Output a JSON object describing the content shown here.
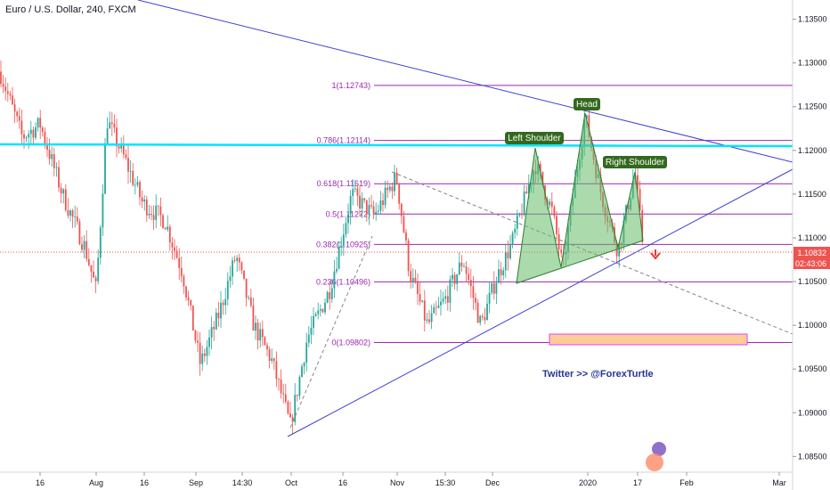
{
  "header": {
    "title": "Euro / U.S. Dollar, 240, FXCM"
  },
  "annotations": {
    "twitter": "Twitter >> @ForexTurtle",
    "left_shoulder": "Left Shoulder",
    "head": "Head",
    "right_shoulder": "Right Shoulder"
  },
  "price_badge": {
    "price": "1.10832",
    "countdown": "02:43:06"
  },
  "chart_data": {
    "type": "candlestick",
    "instrument": "Euro / U.S. Dollar",
    "timeframe": "240",
    "source": "FXCM",
    "ylim": [
      1.0832,
      1.1372
    ],
    "y_ticks": [
      "1.13500",
      "1.13000",
      "1.12500",
      "1.12000",
      "1.11500",
      "1.11000",
      "1.10500",
      "1.10000",
      "1.09500",
      "1.09000",
      "1.08500"
    ],
    "x_ticks": [
      "16",
      "Aug",
      "16",
      "Sep",
      "14:30",
      "Oct",
      "16",
      "Nov",
      "15:30",
      "Dec",
      "2020",
      "17",
      "Feb",
      "Mar"
    ],
    "fibonacci_levels": [
      {
        "label": "0(1.09802)",
        "ratio": 0,
        "price": 1.09802
      },
      {
        "label": "0.236(1.10496)",
        "ratio": 0.236,
        "price": 1.10496
      },
      {
        "label": "0.382(1.10925)",
        "ratio": 0.382,
        "price": 1.10925
      },
      {
        "label": "0.5(1.11272)",
        "ratio": 0.5,
        "price": 1.11272
      },
      {
        "label": "0.618(1.11619)",
        "ratio": 0.618,
        "price": 1.11619
      },
      {
        "label": "0.786(1.12114)",
        "ratio": 0.786,
        "price": 1.12114
      },
      {
        "label": "1(1.12743)",
        "ratio": 1,
        "price": 1.12743
      }
    ],
    "horizontal_resistance": 1.1202,
    "current_price": 1.10832,
    "pattern": "head-and-shoulders",
    "colors": {
      "up": "#26a69a",
      "down": "#ef5350",
      "fib": "#9c27b0",
      "trend": "#3f3fd4",
      "resistance": "#00e5ff",
      "pattern": "#66bb6a",
      "zone": "#ffcc99",
      "badge": "#ef5350",
      "arrow": "#e53935"
    }
  }
}
